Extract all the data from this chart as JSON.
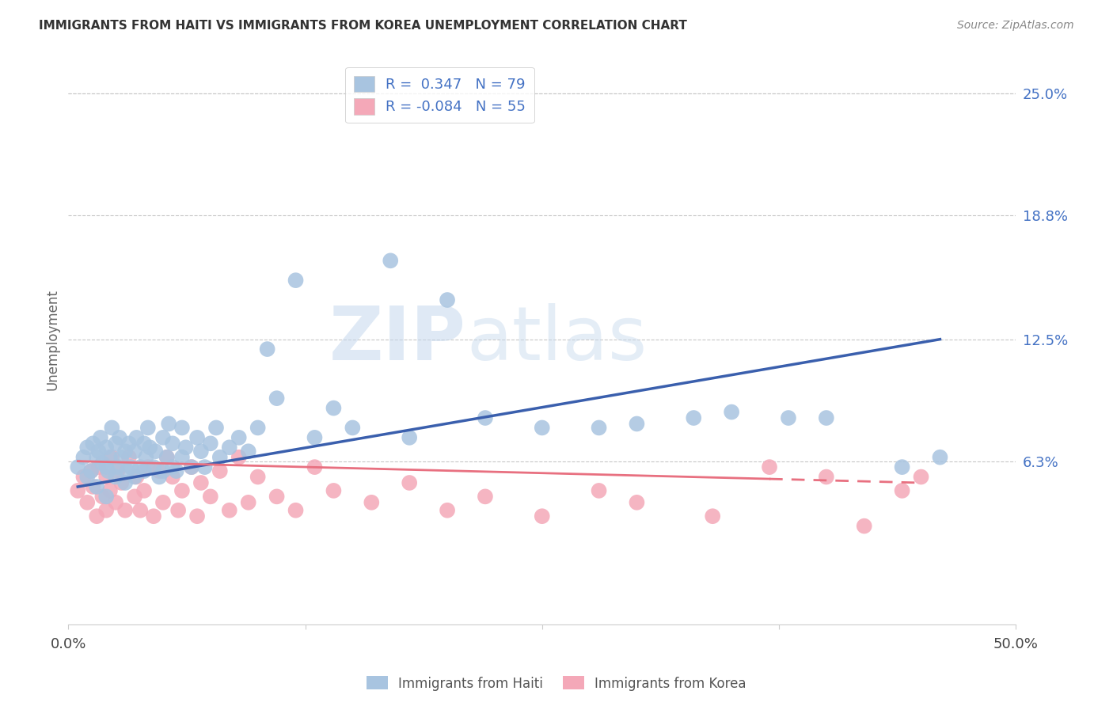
{
  "title": "IMMIGRANTS FROM HAITI VS IMMIGRANTS FROM KOREA UNEMPLOYMENT CORRELATION CHART",
  "source": "Source: ZipAtlas.com",
  "xlabel": "",
  "ylabel": "Unemployment",
  "xlim": [
    0.0,
    0.5
  ],
  "ylim": [
    -0.02,
    0.27
  ],
  "yticks": [
    0.063,
    0.125,
    0.188,
    0.25
  ],
  "ytick_labels": [
    "6.3%",
    "12.5%",
    "18.8%",
    "25.0%"
  ],
  "xticks": [
    0.0,
    0.125,
    0.25,
    0.375,
    0.5
  ],
  "xtick_labels": [
    "0.0%",
    "",
    "",
    "",
    "50.0%"
  ],
  "haiti_R": 0.347,
  "haiti_N": 79,
  "korea_R": -0.084,
  "korea_N": 55,
  "haiti_color": "#a8c4e0",
  "korea_color": "#f4a8b8",
  "haiti_line_color": "#3a5fad",
  "korea_line_color": "#e87080",
  "bg_color": "#ffffff",
  "grid_color": "#c8c8c8",
  "title_color": "#333333",
  "label_color": "#4472c4",
  "source_color": "#888888",
  "watermark_color": "#dce8f3",
  "haiti_x": [
    0.005,
    0.008,
    0.01,
    0.01,
    0.012,
    0.013,
    0.015,
    0.015,
    0.016,
    0.017,
    0.018,
    0.02,
    0.02,
    0.02,
    0.021,
    0.022,
    0.023,
    0.025,
    0.025,
    0.026,
    0.027,
    0.028,
    0.03,
    0.03,
    0.031,
    0.032,
    0.033,
    0.035,
    0.035,
    0.036,
    0.038,
    0.04,
    0.04,
    0.041,
    0.042,
    0.043,
    0.045,
    0.046,
    0.048,
    0.05,
    0.05,
    0.052,
    0.053,
    0.055,
    0.055,
    0.057,
    0.06,
    0.06,
    0.062,
    0.065,
    0.068,
    0.07,
    0.072,
    0.075,
    0.078,
    0.08,
    0.085,
    0.09,
    0.095,
    0.1,
    0.105,
    0.11,
    0.12,
    0.13,
    0.14,
    0.15,
    0.17,
    0.18,
    0.2,
    0.22,
    0.25,
    0.28,
    0.3,
    0.33,
    0.35,
    0.38,
    0.4,
    0.44,
    0.46
  ],
  "haiti_y": [
    0.06,
    0.065,
    0.055,
    0.07,
    0.058,
    0.072,
    0.05,
    0.065,
    0.068,
    0.075,
    0.062,
    0.045,
    0.06,
    0.07,
    0.058,
    0.065,
    0.08,
    0.055,
    0.072,
    0.06,
    0.075,
    0.065,
    0.052,
    0.068,
    0.058,
    0.072,
    0.06,
    0.055,
    0.068,
    0.075,
    0.06,
    0.058,
    0.072,
    0.065,
    0.08,
    0.07,
    0.06,
    0.068,
    0.055,
    0.058,
    0.075,
    0.065,
    0.082,
    0.06,
    0.072,
    0.058,
    0.065,
    0.08,
    0.07,
    0.06,
    0.075,
    0.068,
    0.06,
    0.072,
    0.08,
    0.065,
    0.07,
    0.075,
    0.068,
    0.08,
    0.12,
    0.095,
    0.155,
    0.075,
    0.09,
    0.08,
    0.165,
    0.075,
    0.145,
    0.085,
    0.08,
    0.08,
    0.082,
    0.085,
    0.088,
    0.085,
    0.085,
    0.06,
    0.065
  ],
  "korea_x": [
    0.005,
    0.008,
    0.01,
    0.012,
    0.013,
    0.015,
    0.016,
    0.018,
    0.02,
    0.02,
    0.022,
    0.023,
    0.025,
    0.026,
    0.028,
    0.03,
    0.032,
    0.035,
    0.036,
    0.038,
    0.04,
    0.042,
    0.045,
    0.048,
    0.05,
    0.052,
    0.055,
    0.058,
    0.06,
    0.065,
    0.068,
    0.07,
    0.075,
    0.08,
    0.085,
    0.09,
    0.095,
    0.1,
    0.11,
    0.12,
    0.13,
    0.14,
    0.16,
    0.18,
    0.2,
    0.22,
    0.25,
    0.28,
    0.3,
    0.34,
    0.37,
    0.4,
    0.42,
    0.44,
    0.45
  ],
  "korea_y": [
    0.048,
    0.055,
    0.042,
    0.058,
    0.05,
    0.035,
    0.06,
    0.045,
    0.038,
    0.055,
    0.048,
    0.065,
    0.042,
    0.058,
    0.052,
    0.038,
    0.065,
    0.045,
    0.055,
    0.038,
    0.048,
    0.06,
    0.035,
    0.058,
    0.042,
    0.065,
    0.055,
    0.038,
    0.048,
    0.06,
    0.035,
    0.052,
    0.045,
    0.058,
    0.038,
    0.065,
    0.042,
    0.055,
    0.045,
    0.038,
    0.06,
    0.048,
    0.042,
    0.052,
    0.038,
    0.045,
    0.035,
    0.048,
    0.042,
    0.035,
    0.06,
    0.055,
    0.03,
    0.048,
    0.055
  ],
  "haiti_trend_x": [
    0.005,
    0.46
  ],
  "haiti_trend_y": [
    0.05,
    0.125
  ],
  "korea_trend_x": [
    0.005,
    0.45
  ],
  "korea_trend_y": [
    0.063,
    0.052
  ]
}
